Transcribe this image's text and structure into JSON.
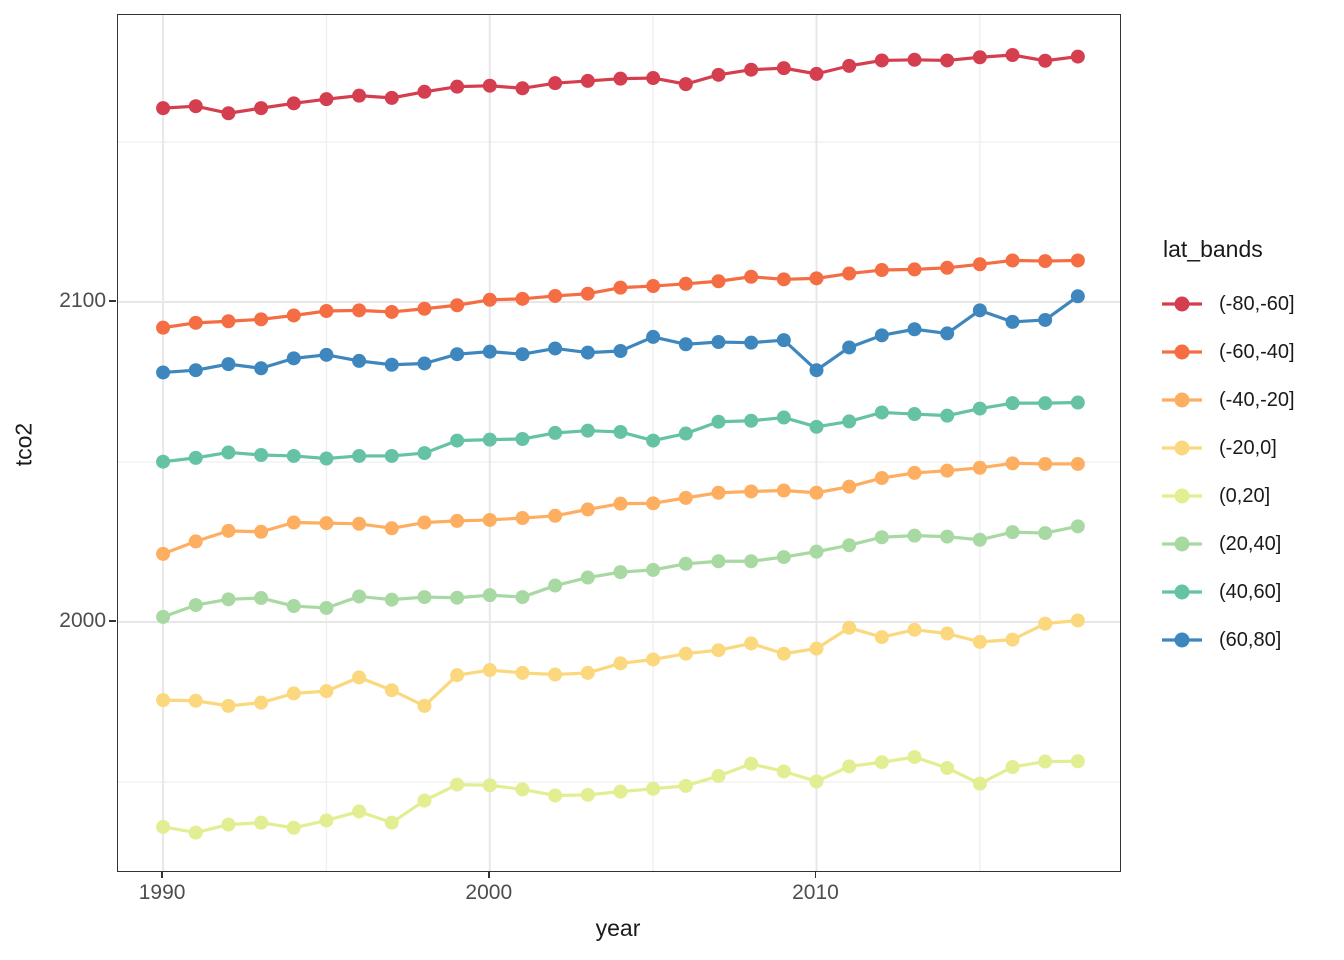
{
  "chart_data": {
    "type": "line",
    "title": "",
    "xlabel": "year",
    "ylabel": "tco2",
    "legend_title": "lat_bands",
    "legend_position": "right",
    "grid": true,
    "xlim": [
      1988.62,
      2019.29
    ],
    "ylim": [
      1922.2,
      2189.7
    ],
    "x_major_ticks": [
      1990,
      2000,
      2010
    ],
    "x_minor_ticks": [
      1995,
      2005,
      2015
    ],
    "y_major_ticks": [
      2000,
      2100
    ],
    "y_minor_ticks": [
      1950,
      2050,
      2150
    ],
    "x": [
      1990,
      1991,
      1992,
      1993,
      1994,
      1995,
      1996,
      1997,
      1998,
      1999,
      2000,
      2001,
      2002,
      2003,
      2004,
      2005,
      2006,
      2007,
      2008,
      2009,
      2010,
      2011,
      2012,
      2013,
      2014,
      2015,
      2016,
      2017,
      2018
    ],
    "series": [
      {
        "name": "(-80,-60]",
        "color": "#d53e4f",
        "values": [
          2160.6,
          2161.2,
          2159.0,
          2160.6,
          2162.1,
          2163.4,
          2164.5,
          2163.8,
          2165.7,
          2167.3,
          2167.6,
          2166.8,
          2168.4,
          2169.1,
          2169.8,
          2170.0,
          2168.1,
          2171.0,
          2172.6,
          2173.1,
          2171.3,
          2173.8,
          2175.5,
          2175.7,
          2175.5,
          2176.5,
          2177.2,
          2175.4,
          2176.7
        ]
      },
      {
        "name": "(-60,-40]",
        "color": "#f46d43",
        "values": [
          2092.0,
          2093.5,
          2094.0,
          2094.6,
          2095.8,
          2097.2,
          2097.4,
          2096.9,
          2097.9,
          2099.0,
          2100.7,
          2101.0,
          2101.9,
          2102.6,
          2104.5,
          2105.0,
          2105.7,
          2106.5,
          2107.9,
          2107.1,
          2107.4,
          2108.9,
          2110.0,
          2110.2,
          2110.7,
          2111.8,
          2113.0,
          2112.8,
          2113.0
        ]
      },
      {
        "name": "(-40,-20]",
        "color": "#fdae61",
        "values": [
          2021.3,
          2025.2,
          2028.5,
          2028.2,
          2031.1,
          2030.9,
          2030.7,
          2029.3,
          2031.1,
          2031.6,
          2031.9,
          2032.5,
          2033.2,
          2035.2,
          2037.0,
          2037.1,
          2038.8,
          2040.4,
          2040.8,
          2041.1,
          2040.4,
          2042.3,
          2045.0,
          2046.6,
          2047.3,
          2048.2,
          2049.6,
          2049.4,
          2049.4
        ]
      },
      {
        "name": "(-20,0]",
        "color": "#fbd87e",
        "values": [
          1975.6,
          1975.4,
          1973.8,
          1974.8,
          1977.7,
          1978.4,
          1982.7,
          1978.7,
          1973.8,
          1983.4,
          1985.0,
          1984.1,
          1983.6,
          1984.1,
          1987.1,
          1988.3,
          1990.1,
          1991.2,
          1993.3,
          1990.1,
          1991.7,
          1998.2,
          1995.3,
          1997.6,
          1996.4,
          1993.8,
          1994.5,
          1999.5,
          2000.5
        ]
      },
      {
        "name": "(0,20]",
        "color": "#e2ee91",
        "values": [
          1936.0,
          1934.2,
          1936.7,
          1937.3,
          1935.7,
          1938.0,
          1940.8,
          1937.3,
          1944.2,
          1949.2,
          1949.0,
          1947.7,
          1945.8,
          1946.0,
          1947.0,
          1947.9,
          1948.8,
          1951.9,
          1955.7,
          1953.3,
          1950.2,
          1954.9,
          1956.2,
          1957.8,
          1954.4,
          1949.5,
          1954.7,
          1956.4,
          1956.5
        ]
      },
      {
        "name": "(20,40]",
        "color": "#a8d9a2",
        "values": [
          2001.6,
          2005.3,
          2007.1,
          2007.5,
          2005.0,
          2004.4,
          2008.0,
          2007.0,
          2007.8,
          2007.6,
          2008.4,
          2007.8,
          2011.4,
          2013.9,
          2015.6,
          2016.3,
          2018.2,
          2019.0,
          2019.0,
          2020.3,
          2022.0,
          2024.0,
          2026.5,
          2027.0,
          2026.7,
          2025.7,
          2028.1,
          2027.8,
          2029.9
        ]
      },
      {
        "name": "(40,60]",
        "color": "#66c2a5",
        "values": [
          2050.1,
          2051.3,
          2053.0,
          2052.2,
          2051.9,
          2051.1,
          2051.9,
          2051.9,
          2052.8,
          2056.7,
          2057.0,
          2057.2,
          2059.1,
          2059.8,
          2059.4,
          2056.7,
          2058.9,
          2062.6,
          2062.9,
          2063.9,
          2061.0,
          2062.7,
          2065.5,
          2065.0,
          2064.5,
          2066.7,
          2068.4,
          2068.4,
          2068.6
        ]
      },
      {
        "name": "(60,80]",
        "color": "#3d87be",
        "values": [
          2078.0,
          2078.7,
          2080.6,
          2079.3,
          2082.4,
          2083.5,
          2081.6,
          2080.4,
          2080.8,
          2083.7,
          2084.5,
          2083.7,
          2085.5,
          2084.2,
          2084.7,
          2089.1,
          2086.8,
          2087.5,
          2087.3,
          2088.1,
          2078.7,
          2085.8,
          2089.6,
          2091.5,
          2090.2,
          2097.4,
          2093.8,
          2094.4,
          2101.8
        ]
      }
    ],
    "style": {
      "major_grid_color": "#e7e7e7",
      "minor_grid_color": "#f0f0f0",
      "panel_border_color": "#333333",
      "tick_label_color": "#4d4d4d",
      "point_radius": 7,
      "line_width": 3.2
    }
  }
}
